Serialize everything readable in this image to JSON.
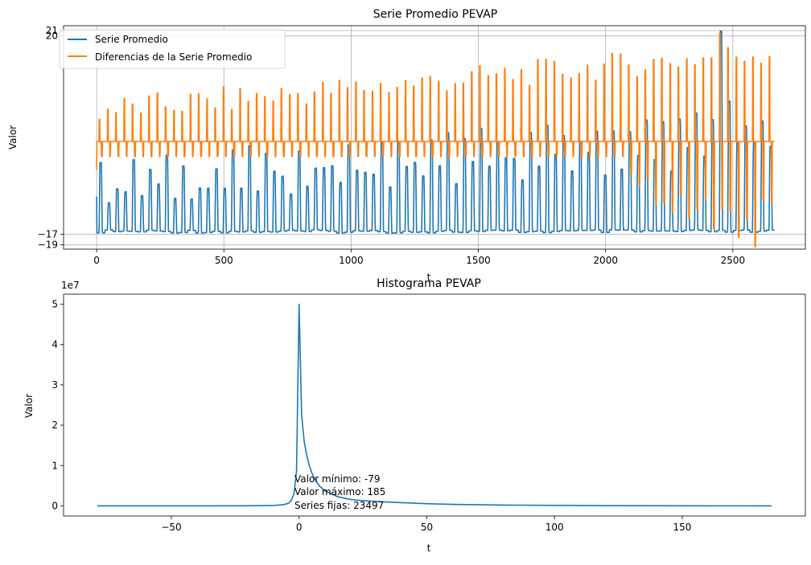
{
  "chart_data": [
    {
      "type": "line",
      "title": "Serie Promedio PEVAP",
      "xlabel": "t",
      "ylabel": "Valor",
      "xlim": [
        -130,
        2785
      ],
      "ylim": [
        -19.8,
        21.9
      ],
      "xticks": [
        0,
        500,
        1000,
        1500,
        2000,
        2500
      ],
      "xtick_labels": [
        "0",
        "500",
        "1000",
        "1500",
        "2000",
        "2500"
      ],
      "yticks": [
        -19,
        -17,
        20,
        21
      ],
      "ytick_labels": [
        "−19",
        "−17",
        "20",
        "21"
      ],
      "grid": true,
      "legend_position": "upper-left",
      "n_points": 2665,
      "series": [
        {
          "name": "Serie Promedio",
          "color": "#1f77b4",
          "pattern": "oscillating, ~82 cycles, range about -17 to 21",
          "summary_x": [
            0,
            10,
            20,
            30,
            40,
            50,
            60,
            70,
            80,
            90,
            100
          ],
          "summary_y": [
            -10,
            -16,
            -4,
            -16,
            -4,
            -16,
            -4,
            -16,
            -4,
            -16,
            -4
          ]
        },
        {
          "name": "Diferencias de la Serie Promedio",
          "color": "#ff7f0e",
          "pattern": "oscillating around 0, ~82 cycles, range about -19 to 20",
          "summary_x": [
            0,
            10,
            20,
            30,
            40,
            50,
            60,
            70,
            80,
            90,
            100
          ],
          "summary_y": [
            -5,
            0,
            5,
            0,
            5,
            0,
            5,
            0,
            5,
            0,
            5
          ]
        }
      ]
    },
    {
      "type": "line",
      "title": "Histograma PEVAP",
      "xlabel": "t",
      "ylabel": "Valor",
      "xlim": [
        -92.2,
        198.2
      ],
      "ylim": [
        -2500000,
        52500000
      ],
      "xticks": [
        -50,
        0,
        50,
        100,
        150
      ],
      "xtick_labels": [
        "−50",
        "0",
        "50",
        "100",
        "150"
      ],
      "yticks": [
        0,
        10000000,
        20000000,
        30000000,
        40000000,
        50000000
      ],
      "ytick_labels": [
        "0",
        "1",
        "2",
        "3",
        "4",
        "5"
      ],
      "offset_text": "1e7",
      "grid": false,
      "series": [
        {
          "color": "#1f77b4",
          "x": [
            -79,
            -60,
            -40,
            -20,
            -10,
            -6,
            -4,
            -3,
            -2,
            -1,
            0,
            1,
            2,
            3,
            4,
            5,
            6,
            8,
            10,
            15,
            20,
            25,
            30,
            40,
            50,
            60,
            80,
            100,
            120,
            150,
            185
          ],
          "y": [
            0,
            0,
            0,
            20000,
            100000,
            300000,
            700000,
            1400000,
            3000000,
            8500000,
            50000000,
            22500000,
            16000000,
            12500000,
            10000000,
            8200000,
            6800000,
            4900000,
            3800000,
            2300000,
            1600000,
            1300000,
            1100000,
            800000,
            550000,
            380000,
            200000,
            120000,
            60000,
            20000,
            0
          ]
        }
      ],
      "annotations": [
        "Valor mínimo: -79",
        "Valor máximo: 185",
        "Series fijas: 23497"
      ],
      "annotation_anchor_x": 0,
      "annotation_anchor_y": 0
    }
  ]
}
